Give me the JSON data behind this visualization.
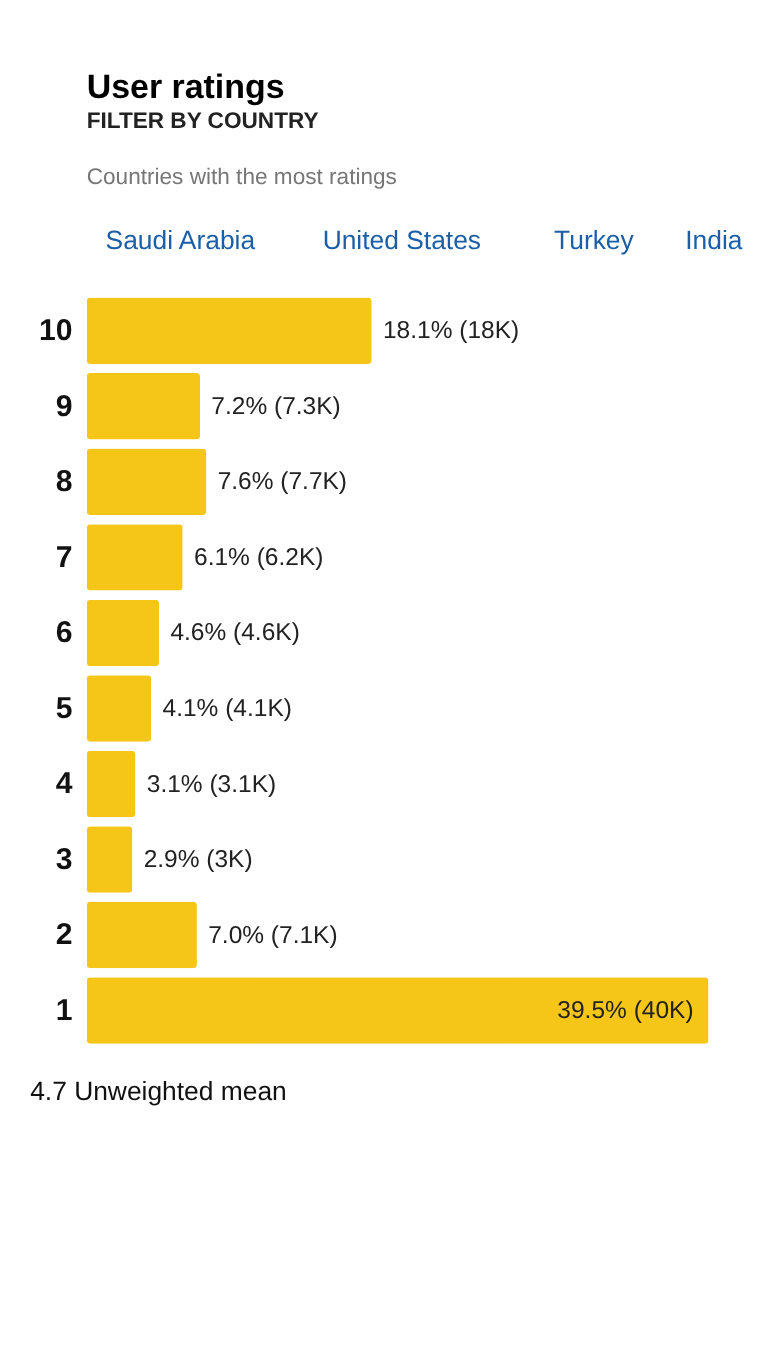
{
  "chart_data": {
    "type": "bar",
    "orientation": "horizontal",
    "title": "User ratings",
    "subtitle": "FILTER BY COUNTRY",
    "annotations": [
      "Countries with the most ratings",
      "Saudi Arabia",
      "United States",
      "Turkey",
      "India",
      "4.7 Unweighted mean"
    ],
    "categories": [
      "10",
      "9",
      "8",
      "7",
      "6",
      "5",
      "4",
      "3",
      "2",
      "1"
    ],
    "values": [
      18.1,
      7.2,
      7.6,
      6.1,
      4.6,
      4.1,
      3.1,
      2.9,
      7.0,
      39.5
    ],
    "value_labels": [
      "18.1% (18K)",
      "7.2% (7.3K)",
      "7.6% (7.7K)",
      "6.1% (6.2K)",
      "4.6% (4.6K)",
      "4.1% (4.1K)",
      "3.1% (3.1K)",
      "2.9% (3K)",
      "7.0% (7.1K)",
      "39.5% (40K)"
    ],
    "color": "#f5c518",
    "xlim": [
      0,
      39.5
    ],
    "tick_labels": "y"
  }
}
